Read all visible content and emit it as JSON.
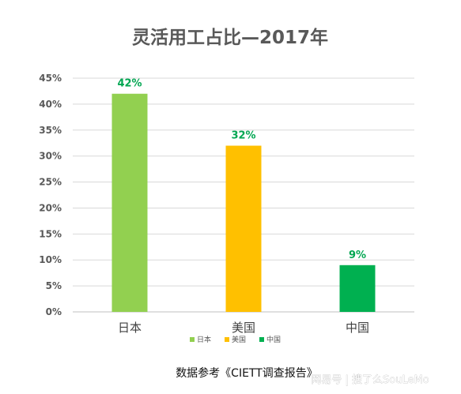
{
  "chart_data": {
    "type": "bar",
    "title": "灵活用工占比—2017年",
    "categories": [
      "日本",
      "美国",
      "中国"
    ],
    "values": [
      42,
      32,
      9
    ],
    "data_labels": [
      "42%",
      "32%",
      "9%"
    ],
    "bar_colors": [
      "#92d050",
      "#ffc000",
      "#00b050"
    ],
    "data_label_color": "#00a651",
    "y_ticks": [
      "0%",
      "5%",
      "10%",
      "15%",
      "20%",
      "25%",
      "30%",
      "35%",
      "40%",
      "45%"
    ],
    "ylim": [
      0,
      45
    ],
    "y_step": 5,
    "grid": true,
    "legend_position": "bottom",
    "legend": [
      "日本",
      "美国",
      "中国"
    ],
    "xlabel": "",
    "ylabel": ""
  },
  "source_note": "数据参考《CIETT调查报告》",
  "watermark": "网易号 | 搜了么SouLeMo"
}
